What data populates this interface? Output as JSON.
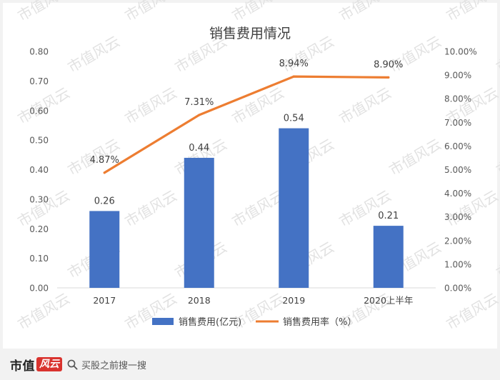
{
  "chart_data": {
    "type": "bar+line",
    "title": "销售费用情况",
    "categories": [
      "2017",
      "2018",
      "2019",
      "2020上半年"
    ],
    "series": [
      {
        "name": "销售费用(亿元)",
        "type": "bar",
        "axis": "left",
        "values": [
          0.26,
          0.44,
          0.54,
          0.21
        ],
        "labels": [
          "0.26",
          "0.44",
          "0.54",
          "0.21"
        ],
        "color": "#4472c4"
      },
      {
        "name": "销售费用率（%）",
        "type": "line",
        "axis": "right",
        "values": [
          4.87,
          7.31,
          8.94,
          8.9
        ],
        "labels": [
          "4.87%",
          "7.31%",
          "8.94%",
          "8.90%"
        ],
        "color": "#ed7d31"
      }
    ],
    "y_left": {
      "ylim": [
        0,
        0.8
      ],
      "ticks": [
        "0.00",
        "0.10",
        "0.20",
        "0.30",
        "0.40",
        "0.50",
        "0.60",
        "0.70",
        "0.80"
      ]
    },
    "y_right": {
      "ylim": [
        0,
        10
      ],
      "ticks": [
        "0.00%",
        "1.00%",
        "2.00%",
        "3.00%",
        "4.00%",
        "5.00%",
        "6.00%",
        "7.00%",
        "8.00%",
        "9.00%",
        "10.00%"
      ]
    },
    "grid": false,
    "legend_position": "bottom"
  },
  "watermark": "市值风云",
  "footer": {
    "brand_main": "市值",
    "brand_script": "风云",
    "search_text": "买股之前搜一搜",
    "search_icon": "search-icon"
  }
}
